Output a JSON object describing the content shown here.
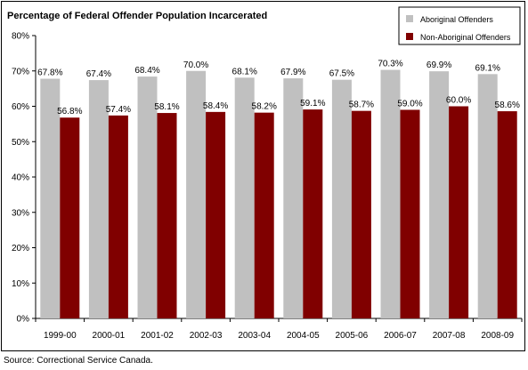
{
  "chart_data": {
    "type": "bar",
    "title": "Percentage of Federal Offender Population Incarcerated",
    "categories": [
      "1999-00",
      "2000-01",
      "2001-02",
      "2002-03",
      "2003-04",
      "2004-05",
      "2005-06",
      "2006-07",
      "2007-08",
      "2008-09"
    ],
    "series": [
      {
        "name": "Aboriginal Offenders",
        "values": [
          67.8,
          67.4,
          68.4,
          70.0,
          68.1,
          67.9,
          67.5,
          70.3,
          69.9,
          69.1
        ],
        "labels": [
          "67.8%",
          "67.4%",
          "68.4%",
          "70.0%",
          "68.1%",
          "67.9%",
          "67.5%",
          "70.3%",
          "69.9%",
          "69.1%"
        ],
        "color": "#c0c0c0"
      },
      {
        "name": "Non-Aboriginal Offenders",
        "values": [
          56.8,
          57.4,
          58.1,
          58.4,
          58.2,
          59.1,
          58.7,
          59.0,
          60.0,
          58.6
        ],
        "labels": [
          "56.8%",
          "57.4%",
          "58.1%",
          "58.4%",
          "58.2%",
          "59.1%",
          "58.7%",
          "59.0%",
          "60.0%",
          "58.6%"
        ],
        "color": "#800000"
      }
    ],
    "ylim": [
      0,
      80
    ],
    "yticks": [
      0,
      10,
      20,
      30,
      40,
      50,
      60,
      70,
      80
    ],
    "ytick_labels": [
      "0%",
      "10%",
      "20%",
      "30%",
      "40%",
      "50%",
      "60%",
      "70%",
      "80%"
    ],
    "xlabel": "",
    "ylabel": "",
    "grid": false,
    "legend_position": "top-right"
  },
  "source": "Source:  Correctional Service Canada."
}
